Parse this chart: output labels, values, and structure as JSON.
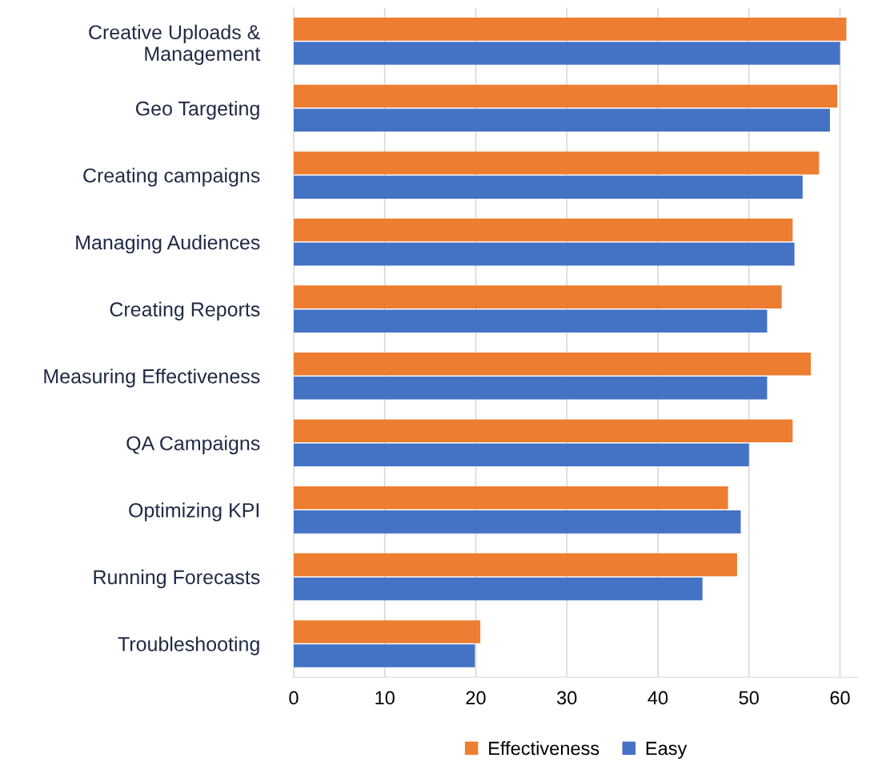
{
  "chart_data": {
    "type": "bar",
    "orientation": "horizontal",
    "categories": [
      "Creative Uploads &\nManagement",
      "Geo Targeting",
      "Creating campaigns",
      "Managing Audiences",
      "Creating Reports",
      "Measuring Effectiveness",
      "QA Campaigns",
      "Optimizing KPI",
      "Running Forecasts",
      "Troubleshooting"
    ],
    "series": [
      {
        "name": "Effectiveness",
        "color": "#ed7d31",
        "values": [
          60.7,
          59.7,
          57.7,
          54.8,
          53.6,
          56.8,
          54.8,
          47.7,
          48.7,
          20.5
        ]
      },
      {
        "name": "Easy",
        "color": "#4472c4",
        "values": [
          60,
          58.9,
          55.9,
          55,
          52,
          52,
          50,
          49.1,
          44.9,
          19.9
        ]
      }
    ],
    "xlim": [
      0,
      62
    ],
    "xticks": [
      0,
      10,
      20,
      30,
      40,
      50,
      60
    ],
    "grid": "x",
    "legend": "bottom"
  }
}
